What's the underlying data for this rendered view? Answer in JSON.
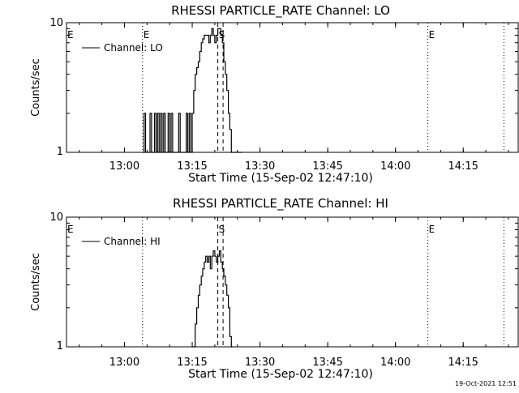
{
  "colors": {
    "background": "#ffffff",
    "foreground": "#000000"
  },
  "footer": {
    "timestamp": "19-Oct-2021 12:51"
  },
  "chart_data": [
    {
      "type": "line",
      "title": "RHESSI PARTICLE_RATE Channel: LO",
      "xlabel": "Start Time (15-Sep-02 12:47:10)",
      "ylabel": "Counts/sec",
      "yscale": "log",
      "ylim": [
        1,
        10
      ],
      "xlim": [
        "12:47:10",
        "14:27:10"
      ],
      "y_tick_labels": [
        "1",
        "10"
      ],
      "x_tick_labels": [
        "13:00",
        "13:15",
        "13:30",
        "13:45",
        "14:00",
        "14:15"
      ],
      "x_ticks": [
        "13:00",
        "13:15",
        "13:30",
        "13:45",
        "14:00",
        "14:15"
      ],
      "legend": {
        "placement": "top-left",
        "entries": [
          "Channel: LO"
        ]
      },
      "series": [
        {
          "name": "Channel: LO",
          "x": [
            "13:04:00",
            "13:04:20",
            "13:04:40",
            "13:05:00",
            "13:05:20",
            "13:05:40",
            "13:06:00",
            "13:06:20",
            "13:06:40",
            "13:07:00",
            "13:07:20",
            "13:07:40",
            "13:08:00",
            "13:08:20",
            "13:08:40",
            "13:09:00",
            "13:09:20",
            "13:09:40",
            "13:10:00",
            "13:10:20",
            "13:10:40",
            "13:11:00",
            "13:11:20",
            "13:11:40",
            "13:12:00",
            "13:12:20",
            "13:12:40",
            "13:13:00",
            "13:13:20",
            "13:13:40",
            "13:14:00",
            "13:14:20",
            "13:14:40",
            "13:15:00",
            "13:15:20",
            "13:15:40",
            "13:16:00",
            "13:16:20",
            "13:16:40",
            "13:17:00",
            "13:17:20",
            "13:17:40",
            "13:18:00",
            "13:18:20",
            "13:18:40",
            "13:19:00",
            "13:19:20",
            "13:19:40",
            "13:20:00",
            "13:20:20",
            "13:20:40",
            "13:21:00",
            "13:21:20",
            "13:21:40",
            "13:22:00",
            "13:22:20",
            "13:22:40",
            "13:23:00",
            "13:23:20",
            "13:23:40",
            "13:24:00",
            "13:24:20",
            "13:24:40",
            "13:25:00",
            "13:25:20",
            "13:25:40"
          ],
          "values": [
            1,
            2,
            1,
            1,
            1,
            2,
            1,
            1,
            2,
            1,
            2,
            1,
            2,
            1,
            2,
            1,
            1,
            2,
            1,
            2,
            1,
            1,
            1,
            1,
            2,
            1,
            1,
            1,
            1,
            2,
            1,
            2,
            1,
            2,
            3,
            4,
            4.5,
            5,
            6,
            7,
            7.5,
            8,
            8,
            8,
            7,
            8,
            9,
            8,
            7,
            8,
            9,
            9,
            8,
            7,
            5,
            4,
            3,
            2,
            1.5,
            1,
            1,
            1,
            1,
            1,
            1,
            1
          ]
        }
      ],
      "annotations": [
        {
          "text": "E",
          "x": "12:47:10",
          "style": "dotted"
        },
        {
          "text": "E",
          "x": "13:04:00",
          "style": "dotted"
        },
        {
          "text": "S",
          "x": "13:20:40",
          "style": "dashed"
        },
        {
          "text": "",
          "x": "13:21:50",
          "style": "dashed"
        },
        {
          "text": "E",
          "x": "14:07:10",
          "style": "dotted"
        },
        {
          "text": "",
          "x": "14:24:00",
          "style": "dotted"
        }
      ]
    },
    {
      "type": "line",
      "title": "RHESSI PARTICLE_RATE Channel: HI",
      "xlabel": "Start Time (15-Sep-02 12:47:10)",
      "ylabel": "Counts/sec",
      "yscale": "log",
      "ylim": [
        1,
        10
      ],
      "xlim": [
        "12:47:10",
        "14:27:10"
      ],
      "y_tick_labels": [
        "1",
        "10"
      ],
      "x_tick_labels": [
        "13:00",
        "13:15",
        "13:30",
        "13:45",
        "14:00",
        "14:15"
      ],
      "x_ticks": [
        "13:00",
        "13:15",
        "13:30",
        "13:45",
        "14:00",
        "14:15"
      ],
      "legend": {
        "placement": "top-left",
        "entries": [
          "Channel: HI"
        ]
      },
      "series": [
        {
          "name": "Channel: HI",
          "x": [
            "13:15:00",
            "13:15:20",
            "13:15:40",
            "13:16:00",
            "13:16:20",
            "13:16:40",
            "13:17:00",
            "13:17:20",
            "13:17:40",
            "13:18:00",
            "13:18:20",
            "13:18:40",
            "13:19:00",
            "13:19:20",
            "13:19:40",
            "13:20:00",
            "13:20:20",
            "13:20:40",
            "13:21:00",
            "13:21:20",
            "13:21:40",
            "13:22:00",
            "13:22:20",
            "13:22:40",
            "13:23:00",
            "13:23:20",
            "13:23:40"
          ],
          "values": [
            1,
            1,
            1.5,
            2,
            2.5,
            3,
            3.5,
            4,
            4.5,
            5,
            4.5,
            5,
            4,
            5,
            5.5,
            5,
            4.5,
            5,
            5.5,
            4.5,
            4,
            3.5,
            3,
            2.5,
            2,
            1.2,
            1
          ]
        }
      ],
      "annotations": [
        {
          "text": "E",
          "x": "12:47:10",
          "style": "dotted"
        },
        {
          "text": "",
          "x": "13:04:00",
          "style": "dotted"
        },
        {
          "text": "S",
          "x": "13:20:40",
          "style": "dashed"
        },
        {
          "text": "",
          "x": "13:21:50",
          "style": "dashed"
        },
        {
          "text": "E",
          "x": "14:07:10",
          "style": "dotted"
        },
        {
          "text": "",
          "x": "14:24:00",
          "style": "dotted"
        }
      ]
    }
  ]
}
